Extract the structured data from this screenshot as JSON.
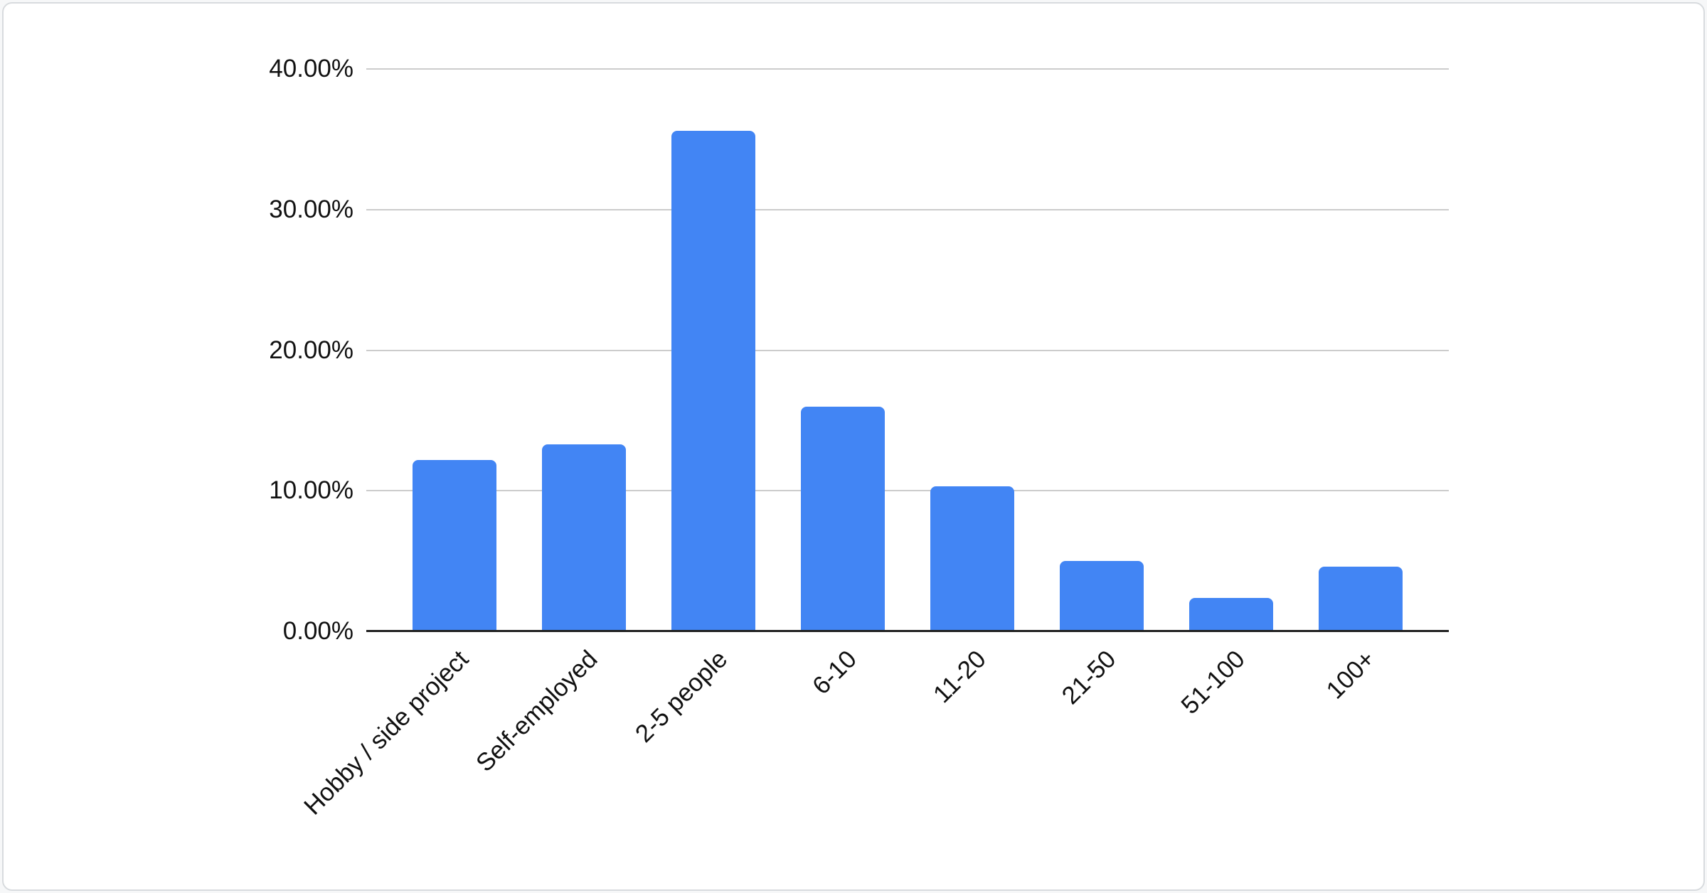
{
  "chart_data": {
    "type": "bar",
    "title": "",
    "xlabel": "",
    "ylabel": "",
    "categories": [
      "Hobby / side project",
      "Self-employed",
      "2-5 people",
      "6-10",
      "11-20",
      "21-50",
      "51-100",
      "100+"
    ],
    "values": [
      12.2,
      13.3,
      35.6,
      16.0,
      10.3,
      5.0,
      2.4,
      4.6
    ],
    "value_unit": "percent",
    "ylim": [
      0,
      40
    ],
    "y_ticks": [
      {
        "label": "0.00%",
        "value": 0
      },
      {
        "label": "10.00%",
        "value": 10
      },
      {
        "label": "20.00%",
        "value": 20
      },
      {
        "label": "30.00%",
        "value": 30
      },
      {
        "label": "40.00%",
        "value": 40
      }
    ],
    "grid": true,
    "legend": "none",
    "bar_color": "#4285f4",
    "gridline_color": "#cccccc",
    "axis_color": "#212121",
    "text_color": "#111111"
  }
}
